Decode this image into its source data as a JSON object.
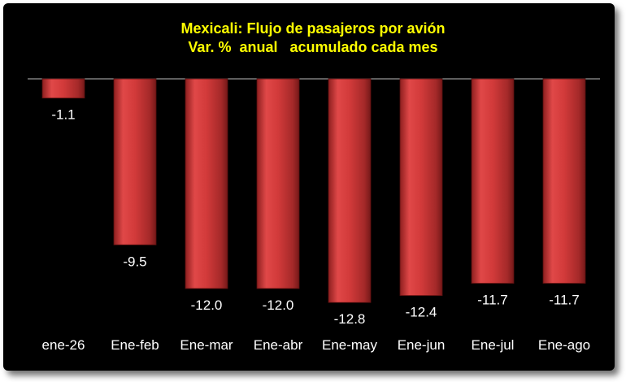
{
  "chart_data": {
    "type": "bar",
    "title": "Mexicali: Flujo de pasajeros por avión",
    "subtitle": "Var. %  anual   acumulado cada mes",
    "xlabel": "",
    "ylabel": "",
    "categories": [
      "ene-26",
      "Ene-feb",
      "Ene-mar",
      "Ene-abr",
      "Ene-may",
      "Ene-jun",
      "Ene-jul",
      "Ene-ago"
    ],
    "values": [
      -1.1,
      -9.5,
      -12.0,
      -12.0,
      -12.8,
      -12.4,
      -11.7,
      -11.7
    ],
    "value_labels": [
      "-1.1",
      "-9.5",
      "-12.0",
      "-12.0",
      "-12.8",
      "-12.4",
      "-11.7",
      "-11.7"
    ],
    "ylim": [
      -13.3,
      0
    ],
    "grid": false,
    "legend": "none",
    "colors": {
      "bar": "#d23a3a",
      "background": "#000000",
      "title": "#ffff00",
      "text": "#ffffff"
    }
  }
}
